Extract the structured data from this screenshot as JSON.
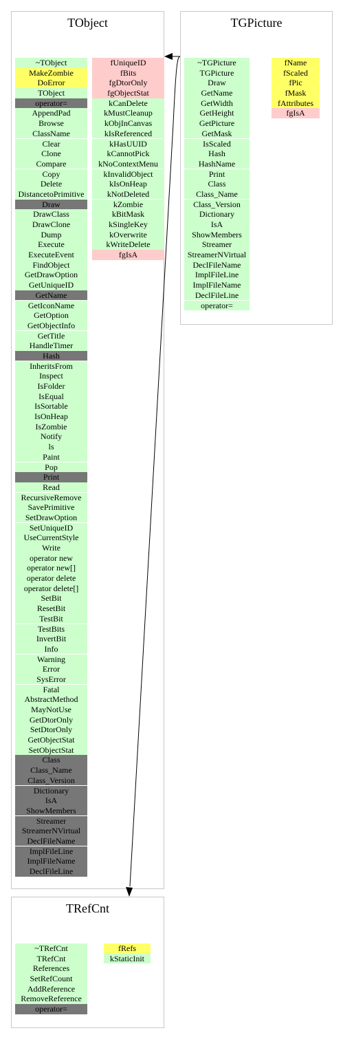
{
  "colors": {
    "public": "#ccffcc",
    "protected": "#ffff66",
    "private": "#ffcccc",
    "inherited": "#777777",
    "box_border": "#c8c8c8"
  },
  "classes": {
    "tobject": {
      "name": "TObject",
      "methods": [
        {
          "label": "~TObject",
          "kind": "pub"
        },
        {
          "label": "MakeZombie",
          "kind": "prot"
        },
        {
          "label": "DoError",
          "kind": "prot"
        },
        {
          "label": "TObject",
          "kind": "pub"
        },
        {
          "label": "operator=",
          "kind": "inh"
        },
        {
          "label": "AppendPad",
          "kind": "pub"
        },
        {
          "label": "Browse",
          "kind": "pub"
        },
        {
          "label": "ClassName",
          "kind": "pub"
        },
        {
          "label": "Clear",
          "kind": "pub"
        },
        {
          "label": "Clone",
          "kind": "pub"
        },
        {
          "label": "Compare",
          "kind": "pub"
        },
        {
          "label": "Copy",
          "kind": "pub"
        },
        {
          "label": "Delete",
          "kind": "pub"
        },
        {
          "label": "DistancetoPrimitive",
          "kind": "pub"
        },
        {
          "label": "Draw",
          "kind": "inh"
        },
        {
          "label": "DrawClass",
          "kind": "pub"
        },
        {
          "label": "DrawClone",
          "kind": "pub"
        },
        {
          "label": "Dump",
          "kind": "pub"
        },
        {
          "label": "Execute",
          "kind": "pub"
        },
        {
          "label": "ExecuteEvent",
          "kind": "pub"
        },
        {
          "label": "FindObject",
          "kind": "pub"
        },
        {
          "label": "GetDrawOption",
          "kind": "pub"
        },
        {
          "label": "GetUniqueID",
          "kind": "pub"
        },
        {
          "label": "GetName",
          "kind": "inh"
        },
        {
          "label": "GetIconName",
          "kind": "pub"
        },
        {
          "label": "GetOption",
          "kind": "pub"
        },
        {
          "label": "GetObjectInfo",
          "kind": "pub"
        },
        {
          "label": "GetTitle",
          "kind": "pub"
        },
        {
          "label": "HandleTimer",
          "kind": "pub"
        },
        {
          "label": "Hash",
          "kind": "inh"
        },
        {
          "label": "InheritsFrom",
          "kind": "pub"
        },
        {
          "label": "Inspect",
          "kind": "pub"
        },
        {
          "label": "IsFolder",
          "kind": "pub"
        },
        {
          "label": "IsEqual",
          "kind": "pub"
        },
        {
          "label": "IsSortable",
          "kind": "pub"
        },
        {
          "label": "IsOnHeap",
          "kind": "pub"
        },
        {
          "label": "IsZombie",
          "kind": "pub"
        },
        {
          "label": "Notify",
          "kind": "pub"
        },
        {
          "label": "ls",
          "kind": "pub"
        },
        {
          "label": "Paint",
          "kind": "pub"
        },
        {
          "label": "Pop",
          "kind": "pub"
        },
        {
          "label": "Print",
          "kind": "inh"
        },
        {
          "label": "Read",
          "kind": "pub"
        },
        {
          "label": "RecursiveRemove",
          "kind": "pub"
        },
        {
          "label": "SavePrimitive",
          "kind": "pub"
        },
        {
          "label": "SetDrawOption",
          "kind": "pub"
        },
        {
          "label": "SetUniqueID",
          "kind": "pub"
        },
        {
          "label": "UseCurrentStyle",
          "kind": "pub"
        },
        {
          "label": "Write",
          "kind": "pub"
        },
        {
          "label": "operator new",
          "kind": "pub"
        },
        {
          "label": "operator new[]",
          "kind": "pub"
        },
        {
          "label": "operator delete",
          "kind": "pub"
        },
        {
          "label": "operator delete[]",
          "kind": "pub"
        },
        {
          "label": "SetBit",
          "kind": "pub"
        },
        {
          "label": "ResetBit",
          "kind": "pub"
        },
        {
          "label": "TestBit",
          "kind": "pub"
        },
        {
          "label": "TestBits",
          "kind": "pub"
        },
        {
          "label": "InvertBit",
          "kind": "pub"
        },
        {
          "label": "Info",
          "kind": "pub"
        },
        {
          "label": "Warning",
          "kind": "pub"
        },
        {
          "label": "Error",
          "kind": "pub"
        },
        {
          "label": "SysError",
          "kind": "pub"
        },
        {
          "label": "Fatal",
          "kind": "pub"
        },
        {
          "label": "AbstractMethod",
          "kind": "pub"
        },
        {
          "label": "MayNotUse",
          "kind": "pub"
        },
        {
          "label": "GetDtorOnly",
          "kind": "pub"
        },
        {
          "label": "SetDtorOnly",
          "kind": "pub"
        },
        {
          "label": "GetObjectStat",
          "kind": "pub"
        },
        {
          "label": "SetObjectStat",
          "kind": "pub"
        },
        {
          "label": "Class",
          "kind": "inh"
        },
        {
          "label": "Class_Name",
          "kind": "inh"
        },
        {
          "label": "Class_Version",
          "kind": "inh"
        },
        {
          "label": "Dictionary",
          "kind": "inh"
        },
        {
          "label": "IsA",
          "kind": "inh"
        },
        {
          "label": "ShowMembers",
          "kind": "inh"
        },
        {
          "label": "Streamer",
          "kind": "inh"
        },
        {
          "label": "StreamerNVirtual",
          "kind": "inh"
        },
        {
          "label": "DeclFileName",
          "kind": "inh"
        },
        {
          "label": "ImplFileLine",
          "kind": "inh"
        },
        {
          "label": "ImplFileName",
          "kind": "inh"
        },
        {
          "label": "DeclFileLine",
          "kind": "inh"
        }
      ],
      "members": [
        {
          "label": "fUniqueID",
          "kind": "priv"
        },
        {
          "label": "fBits",
          "kind": "priv"
        },
        {
          "label": "fgDtorOnly",
          "kind": "priv"
        },
        {
          "label": "fgObjectStat",
          "kind": "priv"
        },
        {
          "label": "kCanDelete",
          "kind": "pub"
        },
        {
          "label": "kMustCleanup",
          "kind": "pub"
        },
        {
          "label": "kObjInCanvas",
          "kind": "pub"
        },
        {
          "label": "kIsReferenced",
          "kind": "pub"
        },
        {
          "label": "kHasUUID",
          "kind": "pub"
        },
        {
          "label": "kCannotPick",
          "kind": "pub"
        },
        {
          "label": "kNoContextMenu",
          "kind": "pub"
        },
        {
          "label": "kInvalidObject",
          "kind": "pub"
        },
        {
          "label": "kIsOnHeap",
          "kind": "pub"
        },
        {
          "label": "kNotDeleted",
          "kind": "pub"
        },
        {
          "label": "kZombie",
          "kind": "pub"
        },
        {
          "label": "kBitMask",
          "kind": "pub"
        },
        {
          "label": "kSingleKey",
          "kind": "pub"
        },
        {
          "label": "kOverwrite",
          "kind": "pub"
        },
        {
          "label": "kWriteDelete",
          "kind": "pub"
        },
        {
          "label": "fgIsA",
          "kind": "priv"
        }
      ]
    },
    "tgpicture": {
      "name": "TGPicture",
      "methods": [
        {
          "label": "~TGPicture",
          "kind": "pub"
        },
        {
          "label": "TGPicture",
          "kind": "pub"
        },
        {
          "label": "Draw",
          "kind": "pub"
        },
        {
          "label": "GetName",
          "kind": "pub"
        },
        {
          "label": "GetWidth",
          "kind": "pub"
        },
        {
          "label": "GetHeight",
          "kind": "pub"
        },
        {
          "label": "GetPicture",
          "kind": "pub"
        },
        {
          "label": "GetMask",
          "kind": "pub"
        },
        {
          "label": "IsScaled",
          "kind": "pub"
        },
        {
          "label": "Hash",
          "kind": "pub"
        },
        {
          "label": "HashName",
          "kind": "pub"
        },
        {
          "label": "Print",
          "kind": "pub"
        },
        {
          "label": "Class",
          "kind": "pub"
        },
        {
          "label": "Class_Name",
          "kind": "pub"
        },
        {
          "label": "Class_Version",
          "kind": "pub"
        },
        {
          "label": "Dictionary",
          "kind": "pub"
        },
        {
          "label": "IsA",
          "kind": "pub"
        },
        {
          "label": "ShowMembers",
          "kind": "pub"
        },
        {
          "label": "Streamer",
          "kind": "pub"
        },
        {
          "label": "StreamerNVirtual",
          "kind": "pub"
        },
        {
          "label": "DeclFileName",
          "kind": "pub"
        },
        {
          "label": "ImplFileLine",
          "kind": "pub"
        },
        {
          "label": "ImplFileName",
          "kind": "pub"
        },
        {
          "label": "DeclFileLine",
          "kind": "pub"
        },
        {
          "label": "operator=",
          "kind": "pub"
        }
      ],
      "members": [
        {
          "label": "fName",
          "kind": "prot"
        },
        {
          "label": "fScaled",
          "kind": "prot"
        },
        {
          "label": "fPic",
          "kind": "prot"
        },
        {
          "label": "fMask",
          "kind": "prot"
        },
        {
          "label": "fAttributes",
          "kind": "prot"
        },
        {
          "label": "fgIsA",
          "kind": "priv"
        }
      ]
    },
    "trefcnt": {
      "name": "TRefCnt",
      "methods": [
        {
          "label": "~TRefCnt",
          "kind": "pub"
        },
        {
          "label": "TRefCnt",
          "kind": "pub"
        },
        {
          "label": "References",
          "kind": "pub"
        },
        {
          "label": "SetRefCount",
          "kind": "pub"
        },
        {
          "label": "AddReference",
          "kind": "pub"
        },
        {
          "label": "RemoveReference",
          "kind": "pub"
        },
        {
          "label": "operator=",
          "kind": "inh"
        }
      ],
      "members": [
        {
          "label": "fRefs",
          "kind": "prot"
        },
        {
          "label": "kStaticInit",
          "kind": "pub"
        }
      ]
    }
  }
}
